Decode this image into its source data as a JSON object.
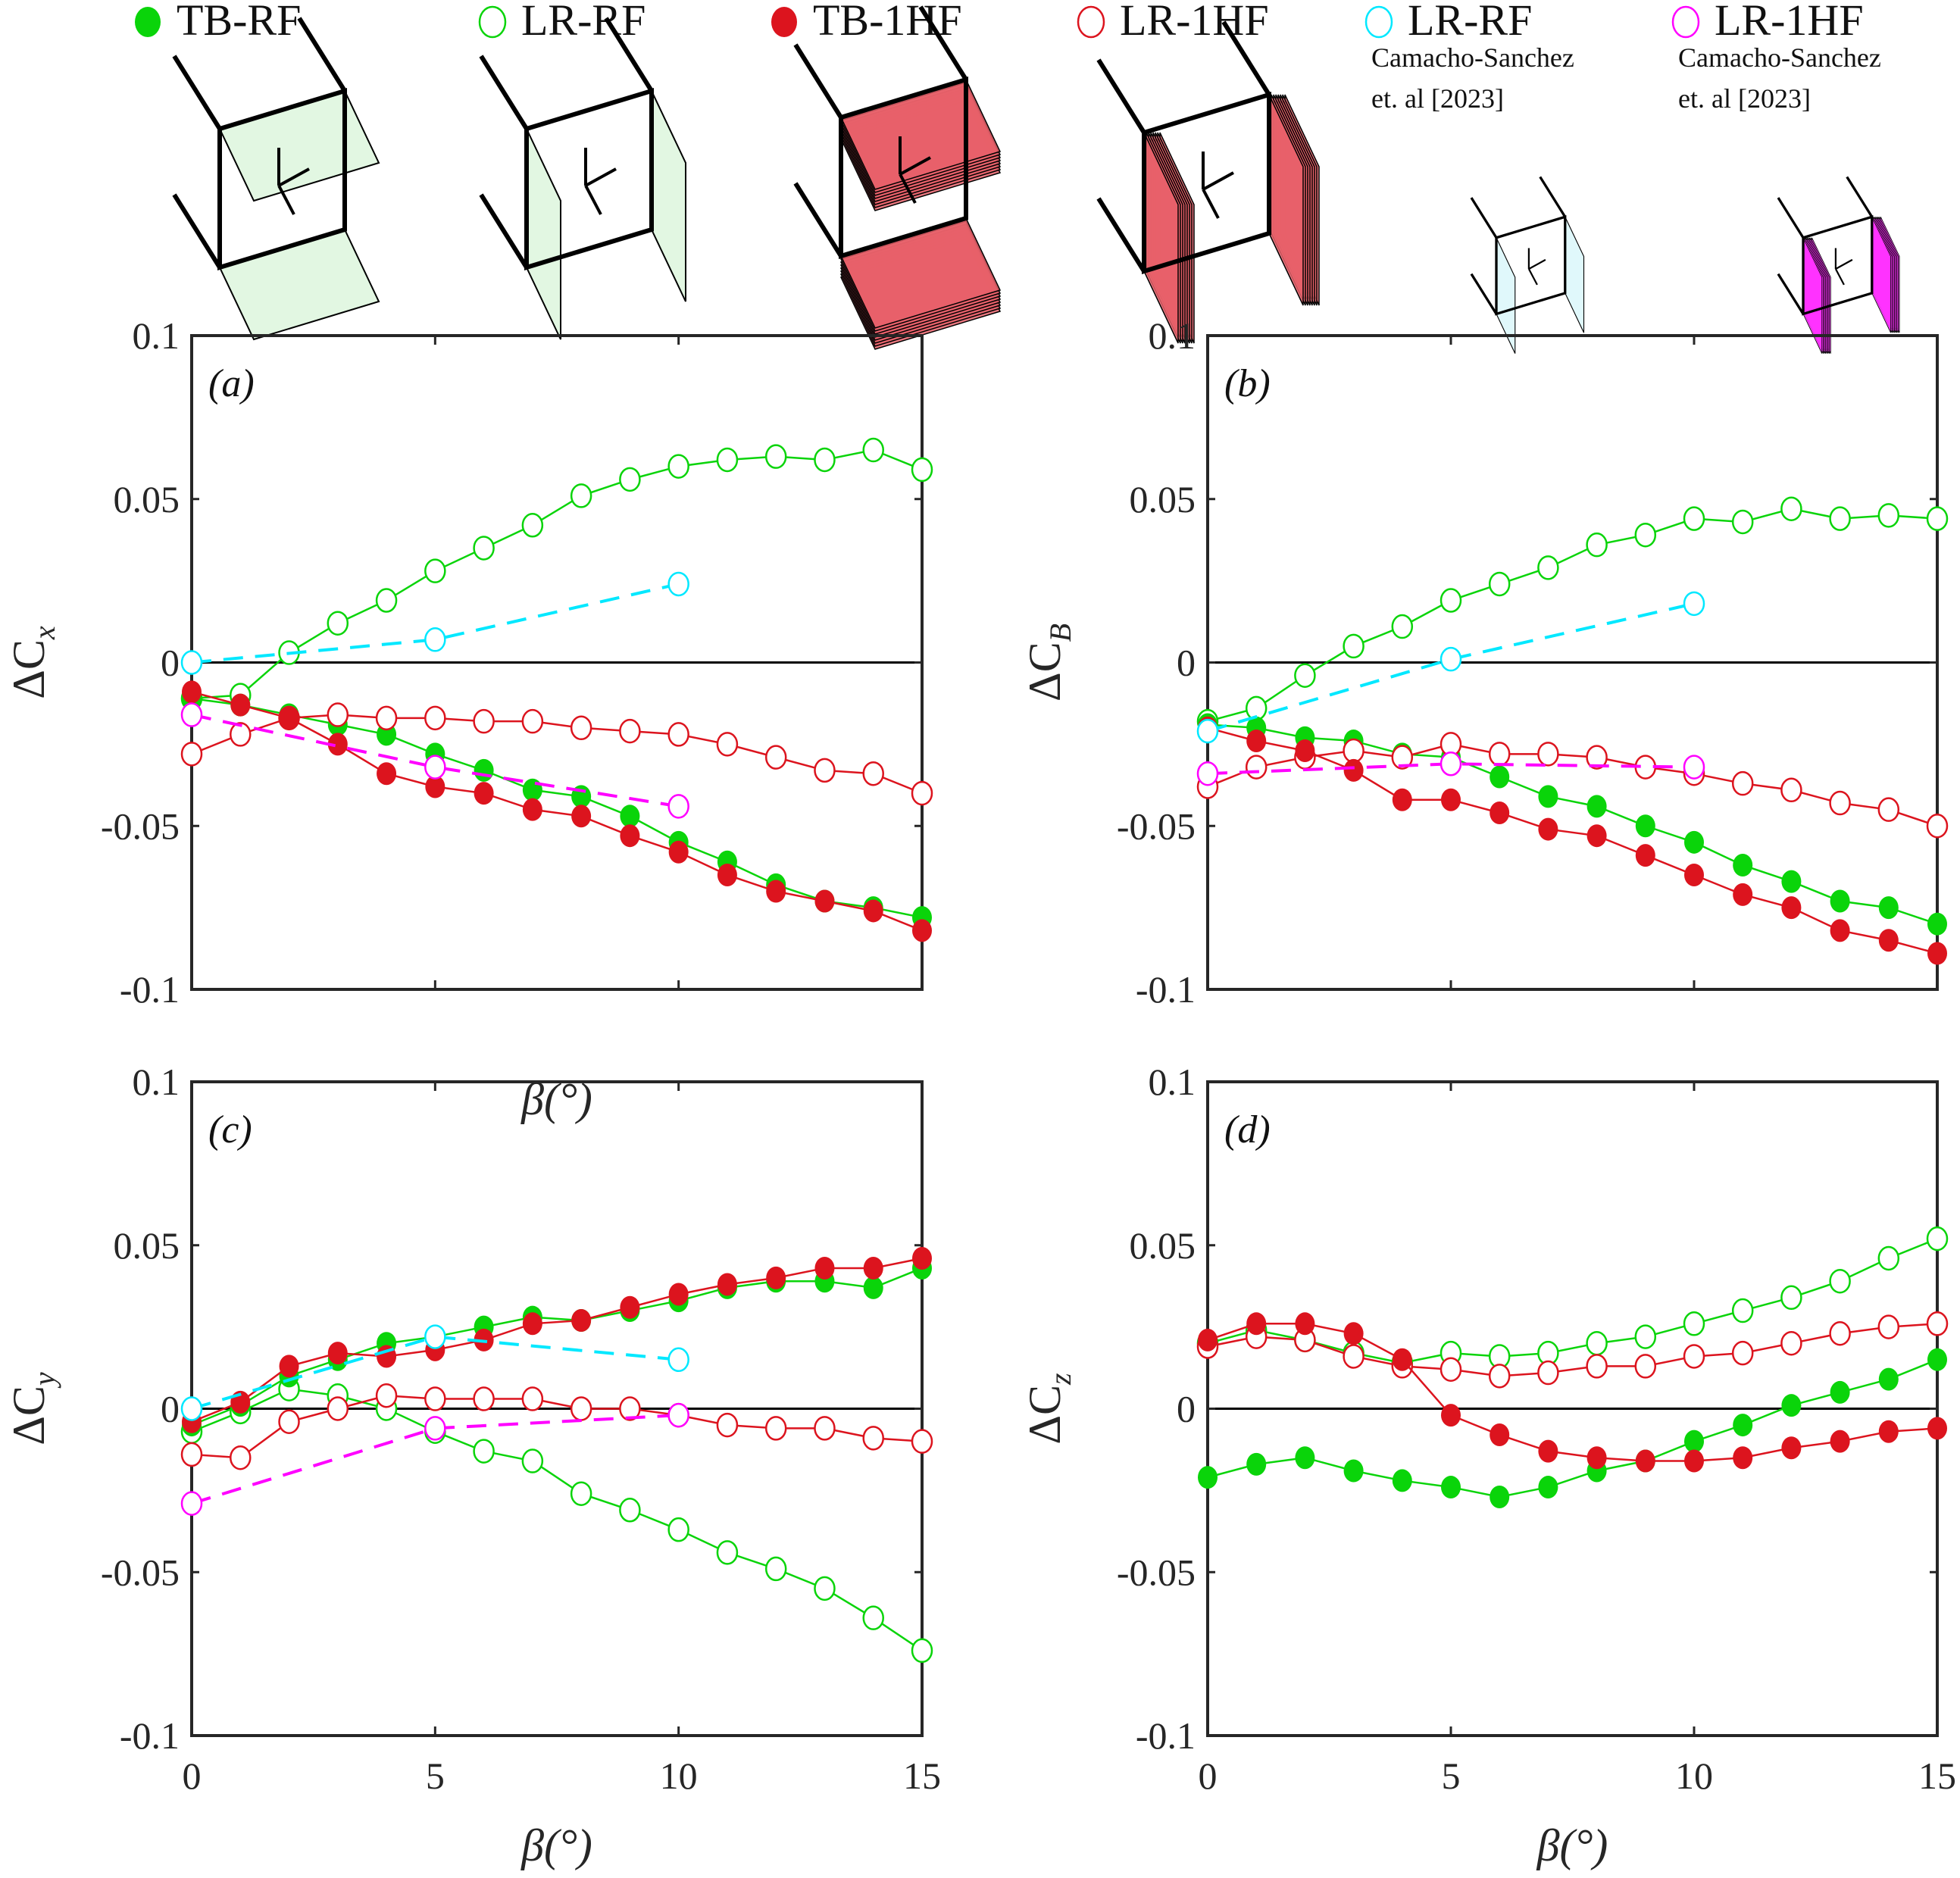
{
  "legend": {
    "items": [
      {
        "key": "tb_rf",
        "label": "TB-RF",
        "sub1": "",
        "sub2": "",
        "color": "#0ad40a",
        "filled": true,
        "icon": "cube-top-bottom-plates-icon"
      },
      {
        "key": "lr_rf",
        "label": "LR-RF",
        "sub1": "",
        "sub2": "",
        "color": "#0ad40a",
        "filled": false,
        "icon": "cube-left-right-plates-icon"
      },
      {
        "key": "tb_1hf",
        "label": "TB-1HF",
        "sub1": "",
        "sub2": "",
        "color": "#dc141e",
        "filled": true,
        "icon": "cube-top-bottom-fins-icon"
      },
      {
        "key": "lr_1hf",
        "label": "LR-1HF",
        "sub1": "",
        "sub2": "",
        "color": "#dc141e",
        "filled": false,
        "icon": "cube-left-right-fins-icon"
      },
      {
        "key": "cs_lr_rf",
        "label": "LR-RF",
        "sub1": "Camacho-Sanchez",
        "sub2": "et. al [2023]",
        "color": "#00e8ff",
        "filled": false,
        "icon": "small-cube-left-right-plates-icon"
      },
      {
        "key": "cs_lr_1hf",
        "label": "LR-1HF",
        "sub1": "Camacho-Sanchez",
        "sub2": "et. al [2023]",
        "color": "#ff00ff",
        "filled": false,
        "icon": "small-cube-left-right-fins-icon"
      }
    ]
  },
  "chart_data": [
    {
      "type": "line",
      "panel": "(a)",
      "ylabel": "ΔC",
      "ylabel_sub": "x",
      "xlabel": "β(°)",
      "xlim": [
        0,
        15
      ],
      "ylim": [
        -0.1,
        0.1
      ],
      "xticks": [
        0,
        5,
        10,
        15
      ],
      "yticks": [
        -0.1,
        -0.05,
        0,
        0.05,
        0.1
      ],
      "ytick_labels": [
        "-0.1",
        "-0.05",
        "0",
        "0.05",
        "0.1"
      ],
      "xtick_labels": [
        "0",
        "5",
        "10",
        "15"
      ],
      "zero_line": true,
      "series": [
        {
          "key": "lr_rf",
          "name": "LR-RF",
          "x": [
            0,
            1,
            2,
            3,
            4,
            5,
            6,
            7,
            8,
            9,
            10,
            11,
            12,
            13,
            14,
            15
          ],
          "y": [
            -0.011,
            -0.01,
            0.003,
            0.012,
            0.019,
            0.028,
            0.035,
            0.042,
            0.051,
            0.056,
            0.06,
            0.062,
            0.063,
            0.062,
            0.065,
            0.059
          ]
        },
        {
          "key": "tb_rf",
          "name": "TB-RF",
          "x": [
            0,
            1,
            2,
            3,
            4,
            5,
            6,
            7,
            8,
            9,
            10,
            11,
            12,
            13,
            14,
            15
          ],
          "y": [
            -0.011,
            -0.013,
            -0.016,
            -0.019,
            -0.022,
            -0.028,
            -0.033,
            -0.039,
            -0.041,
            -0.047,
            -0.055,
            -0.061,
            -0.068,
            -0.073,
            -0.075,
            -0.078
          ]
        },
        {
          "key": "lr_1hf",
          "name": "LR-1HF",
          "x": [
            0,
            1,
            2,
            3,
            4,
            5,
            6,
            7,
            8,
            9,
            10,
            11,
            12,
            13,
            14,
            15
          ],
          "y": [
            -0.028,
            -0.022,
            -0.017,
            -0.016,
            -0.017,
            -0.017,
            -0.018,
            -0.018,
            -0.02,
            -0.021,
            -0.022,
            -0.025,
            -0.029,
            -0.033,
            -0.034,
            -0.04
          ]
        },
        {
          "key": "tb_1hf",
          "name": "TB-1HF",
          "x": [
            0,
            1,
            2,
            3,
            4,
            5,
            6,
            7,
            8,
            9,
            10,
            11,
            12,
            13,
            14,
            15
          ],
          "y": [
            -0.009,
            -0.013,
            -0.017,
            -0.025,
            -0.034,
            -0.038,
            -0.04,
            -0.045,
            -0.047,
            -0.053,
            -0.058,
            -0.065,
            -0.07,
            -0.073,
            -0.076,
            -0.082
          ]
        },
        {
          "key": "cs_lr_rf",
          "name": "LR-RF Camacho-Sanchez et. al [2023]",
          "x": [
            0,
            5,
            10
          ],
          "y": [
            0.0,
            0.007,
            0.024
          ]
        },
        {
          "key": "cs_lr_1hf",
          "name": "LR-1HF Camacho-Sanchez et. al [2023]",
          "x": [
            0,
            5,
            10
          ],
          "y": [
            -0.016,
            -0.032,
            -0.044
          ]
        }
      ]
    },
    {
      "type": "line",
      "panel": "(b)",
      "ylabel": "ΔC",
      "ylabel_sub": "B",
      "xlabel": "",
      "xlim": [
        0,
        15
      ],
      "ylim": [
        -0.1,
        0.1
      ],
      "xticks": [
        0,
        5,
        10,
        15
      ],
      "yticks": [
        -0.1,
        -0.05,
        0,
        0.05,
        0.1
      ],
      "ytick_labels": [
        "-0.1",
        "-0.05",
        "0",
        "0.05",
        "0.1"
      ],
      "xtick_labels": [
        "0",
        "5",
        "10",
        "15"
      ],
      "zero_line": true,
      "series": [
        {
          "key": "lr_rf",
          "name": "LR-RF",
          "x": [
            0,
            1,
            2,
            3,
            4,
            5,
            6,
            7,
            8,
            9,
            10,
            11,
            12,
            13,
            14,
            15
          ],
          "y": [
            -0.018,
            -0.014,
            -0.004,
            0.005,
            0.011,
            0.019,
            0.024,
            0.029,
            0.036,
            0.039,
            0.044,
            0.043,
            0.047,
            0.044,
            0.045,
            0.044
          ]
        },
        {
          "key": "tb_rf",
          "name": "TB-RF",
          "x": [
            0,
            1,
            2,
            3,
            4,
            5,
            6,
            7,
            8,
            9,
            10,
            11,
            12,
            13,
            14,
            15
          ],
          "y": [
            -0.019,
            -0.02,
            -0.023,
            -0.024,
            -0.028,
            -0.029,
            -0.035,
            -0.041,
            -0.044,
            -0.05,
            -0.055,
            -0.062,
            -0.067,
            -0.073,
            -0.075,
            -0.08
          ]
        },
        {
          "key": "lr_1hf",
          "name": "LR-1HF",
          "x": [
            0,
            1,
            2,
            3,
            4,
            5,
            6,
            7,
            8,
            9,
            10,
            11,
            12,
            13,
            14,
            15
          ],
          "y": [
            -0.038,
            -0.032,
            -0.029,
            -0.027,
            -0.029,
            -0.025,
            -0.028,
            -0.028,
            -0.029,
            -0.032,
            -0.034,
            -0.037,
            -0.039,
            -0.043,
            -0.045,
            -0.05
          ]
        },
        {
          "key": "tb_1hf",
          "name": "TB-1HF",
          "x": [
            0,
            1,
            2,
            3,
            4,
            5,
            6,
            7,
            8,
            9,
            10,
            11,
            12,
            13,
            14,
            15
          ],
          "y": [
            -0.02,
            -0.024,
            -0.027,
            -0.033,
            -0.042,
            -0.042,
            -0.046,
            -0.051,
            -0.053,
            -0.059,
            -0.065,
            -0.071,
            -0.075,
            -0.082,
            -0.085,
            -0.089
          ]
        },
        {
          "key": "cs_lr_rf",
          "name": "LR-RF Camacho-Sanchez et. al [2023]",
          "x": [
            0,
            5,
            10
          ],
          "y": [
            -0.021,
            0.001,
            0.018
          ]
        },
        {
          "key": "cs_lr_1hf",
          "name": "LR-1HF Camacho-Sanchez et. al [2023]",
          "x": [
            0,
            5,
            10
          ],
          "y": [
            -0.034,
            -0.031,
            -0.032
          ]
        }
      ]
    },
    {
      "type": "line",
      "panel": "(c)",
      "ylabel": "ΔC",
      "ylabel_sub": "y",
      "xlabel": "β(°)",
      "xlim": [
        0,
        15
      ],
      "ylim": [
        -0.1,
        0.1
      ],
      "xticks": [
        0,
        5,
        10,
        15
      ],
      "yticks": [
        -0.1,
        -0.05,
        0,
        0.05,
        0.1
      ],
      "ytick_labels": [
        "-0.1",
        "-0.05",
        "0",
        "0.05",
        "0.1"
      ],
      "xtick_labels": [
        "0",
        "5",
        "10",
        "15"
      ],
      "zero_line": true,
      "series": [
        {
          "key": "lr_rf",
          "name": "LR-RF",
          "x": [
            0,
            1,
            2,
            3,
            4,
            5,
            6,
            7,
            8,
            9,
            10,
            11,
            12,
            13,
            14,
            15
          ],
          "y": [
            -0.007,
            -0.001,
            0.006,
            0.004,
            0.0,
            -0.007,
            -0.013,
            -0.016,
            -0.026,
            -0.031,
            -0.037,
            -0.044,
            -0.049,
            -0.055,
            -0.064,
            -0.074
          ]
        },
        {
          "key": "tb_rf",
          "name": "TB-RF",
          "x": [
            0,
            1,
            2,
            3,
            4,
            5,
            6,
            7,
            8,
            9,
            10,
            11,
            12,
            13,
            14,
            15
          ],
          "y": [
            -0.005,
            0.001,
            0.01,
            0.015,
            0.02,
            0.022,
            0.025,
            0.028,
            0.027,
            0.03,
            0.033,
            0.037,
            0.039,
            0.039,
            0.037,
            0.043
          ]
        },
        {
          "key": "lr_1hf",
          "name": "LR-1HF",
          "x": [
            0,
            1,
            2,
            3,
            4,
            5,
            6,
            7,
            8,
            9,
            10,
            11,
            12,
            13,
            14,
            15
          ],
          "y": [
            -0.014,
            -0.015,
            -0.004,
            0.0,
            0.004,
            0.003,
            0.003,
            0.003,
            0.0,
            0.0,
            -0.002,
            -0.005,
            -0.006,
            -0.006,
            -0.009,
            -0.01
          ]
        },
        {
          "key": "tb_1hf",
          "name": "TB-1HF",
          "x": [
            0,
            1,
            2,
            3,
            4,
            5,
            6,
            7,
            8,
            9,
            10,
            11,
            12,
            13,
            14,
            15
          ],
          "y": [
            -0.004,
            0.002,
            0.013,
            0.017,
            0.016,
            0.018,
            0.021,
            0.026,
            0.027,
            0.031,
            0.035,
            0.038,
            0.04,
            0.043,
            0.043,
            0.046
          ]
        },
        {
          "key": "cs_lr_rf",
          "name": "LR-RF Camacho-Sanchez et. al [2023]",
          "x": [
            0,
            5,
            10
          ],
          "y": [
            0.0,
            0.022,
            0.015
          ]
        },
        {
          "key": "cs_lr_1hf",
          "name": "LR-1HF Camacho-Sanchez et. al [2023]",
          "x": [
            0,
            5,
            10
          ],
          "y": [
            -0.029,
            -0.006,
            -0.002
          ]
        }
      ]
    },
    {
      "type": "line",
      "panel": "(d)",
      "ylabel": "ΔC",
      "ylabel_sub": "z",
      "xlabel": "β(°)",
      "xlim": [
        0,
        15
      ],
      "ylim": [
        -0.1,
        0.1
      ],
      "xticks": [
        0,
        5,
        10,
        15
      ],
      "yticks": [
        -0.1,
        -0.05,
        0,
        0.05,
        0.1
      ],
      "ytick_labels": [
        "-0.1",
        "-0.05",
        "0",
        "0.05",
        "0.1"
      ],
      "xtick_labels": [
        "0",
        "5",
        "10",
        "15"
      ],
      "zero_line": true,
      "series": [
        {
          "key": "lr_rf",
          "name": "LR-RF",
          "x": [
            0,
            1,
            2,
            3,
            4,
            5,
            6,
            7,
            8,
            9,
            10,
            11,
            12,
            13,
            14,
            15
          ],
          "y": [
            0.02,
            0.024,
            0.021,
            0.017,
            0.014,
            0.017,
            0.016,
            0.017,
            0.02,
            0.022,
            0.026,
            0.03,
            0.034,
            0.039,
            0.046,
            0.052
          ]
        },
        {
          "key": "tb_rf",
          "name": "TB-RF",
          "x": [
            0,
            1,
            2,
            3,
            4,
            5,
            6,
            7,
            8,
            9,
            10,
            11,
            12,
            13,
            14,
            15
          ],
          "y": [
            -0.021,
            -0.017,
            -0.015,
            -0.019,
            -0.022,
            -0.024,
            -0.027,
            -0.024,
            -0.019,
            -0.016,
            -0.01,
            -0.005,
            0.001,
            0.005,
            0.009,
            0.015
          ]
        },
        {
          "key": "lr_1hf",
          "name": "LR-1HF",
          "x": [
            0,
            1,
            2,
            3,
            4,
            5,
            6,
            7,
            8,
            9,
            10,
            11,
            12,
            13,
            14,
            15
          ],
          "y": [
            0.019,
            0.022,
            0.021,
            0.016,
            0.013,
            0.012,
            0.01,
            0.011,
            0.013,
            0.013,
            0.016,
            0.017,
            0.02,
            0.023,
            0.025,
            0.026
          ]
        },
        {
          "key": "tb_1hf",
          "name": "TB-1HF",
          "x": [
            0,
            1,
            2,
            3,
            4,
            5,
            6,
            7,
            8,
            9,
            10,
            11,
            12,
            13,
            14,
            15
          ],
          "y": [
            0.021,
            0.026,
            0.026,
            0.023,
            0.015,
            -0.002,
            -0.008,
            -0.013,
            -0.015,
            -0.016,
            -0.016,
            -0.015,
            -0.012,
            -0.01,
            -0.007,
            -0.006
          ]
        }
      ]
    }
  ]
}
